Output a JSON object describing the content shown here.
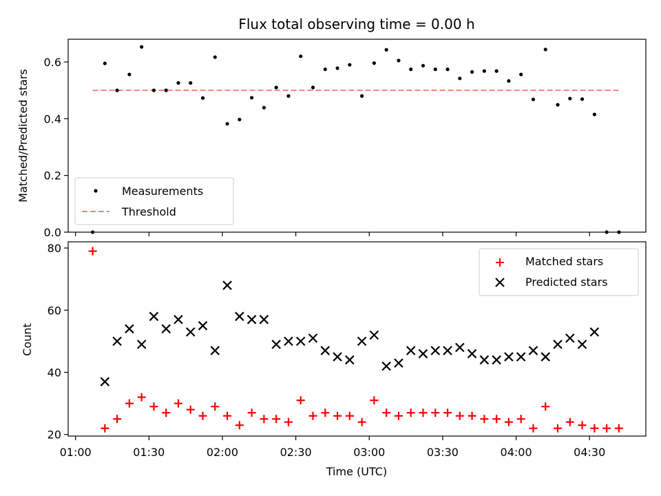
{
  "chart_data": [
    {
      "type": "scatter",
      "title": "Flux total observing time = 0.00 h",
      "xlabel": "",
      "ylabel": "Matched/Predicted stars",
      "ylim": [
        0,
        0.68
      ],
      "xlim": [
        "00:57",
        "04:53"
      ],
      "yticks": [
        "0.0",
        "0.2",
        "0.4",
        "0.6"
      ],
      "grid": false,
      "legend_position": "lower-left",
      "series": [
        {
          "name": "Measurements",
          "marker": "dot",
          "color": "#000000",
          "x": [
            "01:07",
            "01:12",
            "01:17",
            "01:22",
            "01:27",
            "01:32",
            "01:37",
            "01:42",
            "01:47",
            "01:52",
            "01:57",
            "02:02",
            "02:07",
            "02:12",
            "02:17",
            "02:22",
            "02:27",
            "02:32",
            "02:37",
            "02:42",
            "02:47",
            "02:52",
            "02:57",
            "03:02",
            "03:07",
            "03:12",
            "03:17",
            "03:22",
            "03:27",
            "03:32",
            "03:37",
            "03:42",
            "03:47",
            "03:52",
            "03:57",
            "04:02",
            "04:07",
            "04:12",
            "04:17",
            "04:22",
            "04:27",
            "04:32",
            "04:37",
            "04:42"
          ],
          "y": [
            0.0,
            0.595,
            0.5,
            0.556,
            0.653,
            0.5,
            0.5,
            0.526,
            0.526,
            0.473,
            0.617,
            0.382,
            0.397,
            0.474,
            0.439,
            0.51,
            0.48,
            0.62,
            0.51,
            0.574,
            0.578,
            0.59,
            0.48,
            0.596,
            0.643,
            0.605,
            0.574,
            0.587,
            0.574,
            0.574,
            0.542,
            0.565,
            0.568,
            0.568,
            0.533,
            0.556,
            0.468,
            0.644,
            0.449,
            0.471,
            0.469,
            0.415,
            0.0,
            0.0
          ]
        },
        {
          "name": "Threshold",
          "marker": "dashed-line",
          "color": "#ff7f7f",
          "x": [
            "01:07",
            "04:42"
          ],
          "y": [
            0.5,
            0.5
          ]
        }
      ]
    },
    {
      "type": "scatter",
      "title": "",
      "xlabel": "Time (UTC)",
      "ylabel": "Count",
      "ylim": [
        19.5,
        82
      ],
      "xlim": [
        "00:57",
        "04:53"
      ],
      "xticks": [
        "01:00",
        "01:30",
        "02:00",
        "02:30",
        "03:00",
        "03:30",
        "04:00",
        "04:30"
      ],
      "yticks": [
        "20",
        "40",
        "60",
        "80"
      ],
      "grid": false,
      "legend_position": "top-right",
      "series": [
        {
          "name": "Matched stars",
          "marker": "plus",
          "color": "#ff0000",
          "x": [
            "01:07",
            "01:12",
            "01:17",
            "01:22",
            "01:27",
            "01:32",
            "01:37",
            "01:42",
            "01:47",
            "01:52",
            "01:57",
            "02:02",
            "02:07",
            "02:12",
            "02:17",
            "02:22",
            "02:27",
            "02:32",
            "02:37",
            "02:42",
            "02:47",
            "02:52",
            "02:57",
            "03:02",
            "03:07",
            "03:12",
            "03:17",
            "03:22",
            "03:27",
            "03:32",
            "03:37",
            "03:42",
            "03:47",
            "03:52",
            "03:57",
            "04:02",
            "04:07",
            "04:12",
            "04:17",
            "04:22",
            "04:27",
            "04:32",
            "04:37",
            "04:42"
          ],
          "y": [
            79,
            22,
            25,
            30,
            32,
            29,
            27,
            30,
            28,
            26,
            29,
            26,
            23,
            27,
            25,
            25,
            24,
            31,
            26,
            27,
            26,
            26,
            24,
            31,
            27,
            26,
            27,
            27,
            27,
            27,
            26,
            26,
            25,
            25,
            24,
            25,
            22,
            29,
            22,
            24,
            23,
            22,
            22,
            22
          ]
        },
        {
          "name": "Predicted stars",
          "marker": "x",
          "color": "#000000",
          "x": [
            "01:12",
            "01:17",
            "01:22",
            "01:27",
            "01:32",
            "01:37",
            "01:42",
            "01:47",
            "01:52",
            "01:57",
            "02:02",
            "02:07",
            "02:12",
            "02:17",
            "02:22",
            "02:27",
            "02:32",
            "02:37",
            "02:42",
            "02:47",
            "02:52",
            "02:57",
            "03:02",
            "03:07",
            "03:12",
            "03:17",
            "03:22",
            "03:27",
            "03:32",
            "03:37",
            "03:42",
            "03:47",
            "03:52",
            "03:57",
            "04:02",
            "04:07",
            "04:12",
            "04:17",
            "04:22",
            "04:27",
            "04:32"
          ],
          "y": [
            37,
            50,
            54,
            49,
            58,
            54,
            57,
            53,
            55,
            47,
            68,
            58,
            57,
            57,
            49,
            50,
            50,
            51,
            47,
            45,
            44,
            50,
            52,
            42,
            43,
            47,
            46,
            47,
            47,
            48,
            46,
            44,
            44,
            45,
            45,
            47,
            45,
            49,
            51,
            49,
            53
          ]
        }
      ]
    }
  ]
}
